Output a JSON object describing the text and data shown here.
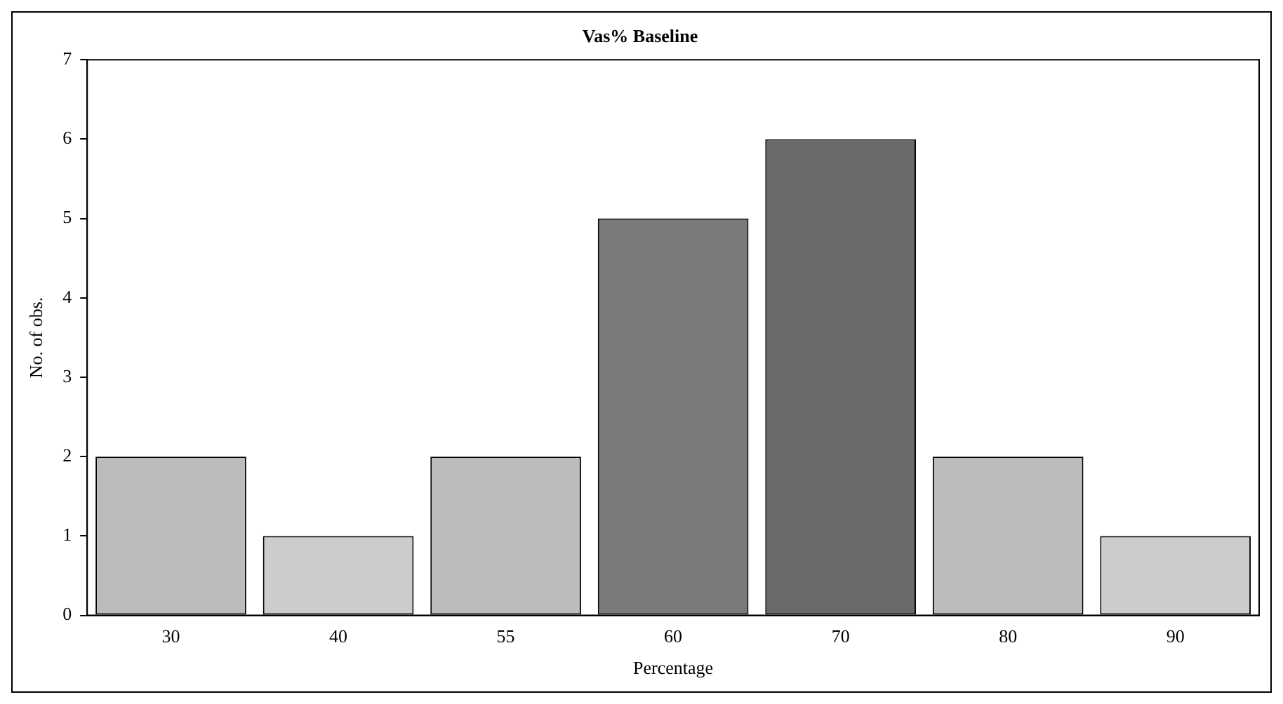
{
  "chart_data": {
    "type": "bar",
    "title": "Vas% Baseline",
    "xlabel": "Percentage",
    "ylabel": "No. of obs.",
    "categories": [
      "30",
      "40",
      "55",
      "60",
      "70",
      "80",
      "90"
    ],
    "values": [
      2,
      1,
      2,
      5,
      6,
      2,
      1
    ],
    "colors": [
      "#bcbcbc",
      "#cccccc",
      "#bcbcbc",
      "#7a7a7a",
      "#6a6a6a",
      "#bcbcbc",
      "#cccccc"
    ],
    "ylim": [
      0,
      7
    ],
    "yticks": [
      0,
      1,
      2,
      3,
      4,
      5,
      6,
      7
    ],
    "grid": false,
    "legend": false
  }
}
